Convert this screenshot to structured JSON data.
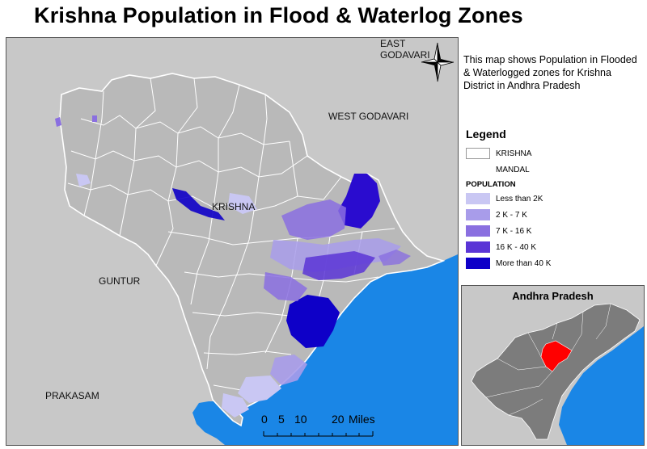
{
  "title": "Krishna Population in Flood & Waterlog Zones",
  "description": "This map shows Population in Flooded & Waterlogged zones for Krishna District in Andhra Pradesh",
  "map_labels": {
    "east_godavari": "EAST GODAVARI",
    "west_godavari": "WEST GODAVARI",
    "krishna": "KRISHNA",
    "guntur": "GUNTUR",
    "prakasam": "PRAKASAM"
  },
  "legend": {
    "title": "Legend",
    "boundary_items": [
      {
        "label": "KRISHNA"
      },
      {
        "label": "MANDAL"
      }
    ],
    "population_heading": "POPULATION",
    "classes": [
      {
        "label": "Less than 2K",
        "color": "#c9c7f3"
      },
      {
        "label": "2 K - 7 K",
        "color": "#a89cea"
      },
      {
        "label": "7 K - 16 K",
        "color": "#8a6fe0"
      },
      {
        "label": "16 K - 40 K",
        "color": "#5a35d6"
      },
      {
        "label": "More than 40 K",
        "color": "#0e00c8"
      }
    ]
  },
  "inset": {
    "title": "Andhra Pradesh"
  },
  "scale_bar": {
    "ticks": [
      "0",
      "5",
      "10",
      "20"
    ],
    "unit": "Miles"
  },
  "colors": {
    "sea": "#1a86e6",
    "land": "#c8c8c8",
    "krishna_land": "#b6b6b6",
    "boundary": "#ffffff",
    "inset_state": "#7c7c7c",
    "inset_highlight": "#ff0000"
  }
}
